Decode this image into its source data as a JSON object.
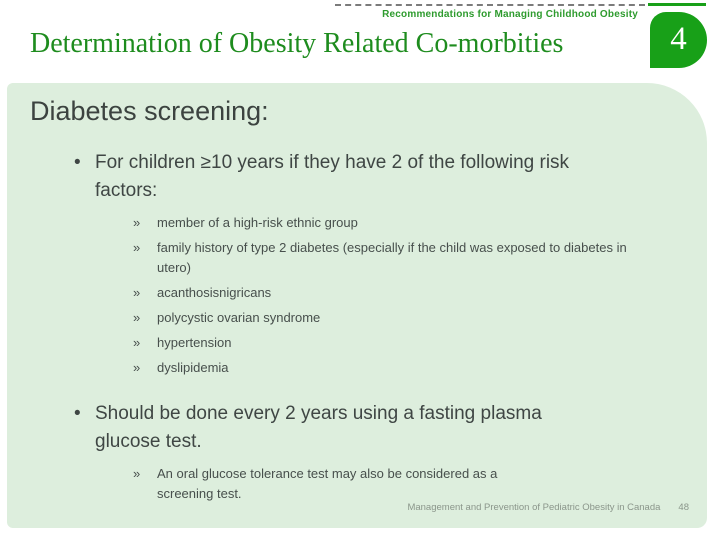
{
  "colors": {
    "title-green": "#1e8c1e",
    "eyebrow-green": "#2e9b2e",
    "badge-green": "#18a018",
    "panel-bg": "#ddeedd",
    "body-text": "#3f4644",
    "footer-text": "#8b968b"
  },
  "header": {
    "eyebrow": "Recommendations for Managing Childhood Obesity",
    "title": "Determination of Obesity Related Co-morbities",
    "page_badge": "4"
  },
  "content": {
    "heading": "Diabetes screening:",
    "bullet_marker": "•",
    "sub_marker": "»",
    "bullets": [
      {
        "text": "For children ≥10 years if they have 2 of the following risk factors:",
        "sub_items": [
          "member of a high-risk ethnic group",
          "family history of type 2 diabetes (especially if the child was exposed to diabetes in utero)",
          "acanthosisnigricans",
          "polycystic ovarian syndrome",
          "hypertension",
          "dyslipidemia"
        ]
      },
      {
        "text": "Should be done every 2 years using a fasting plasma glucose test.",
        "sub_items": [
          "An oral glucose tolerance test may also be considered as a screening test."
        ]
      }
    ]
  },
  "footer": {
    "source": "Management and Prevention of Pediatric Obesity in Canada",
    "page": "48"
  }
}
